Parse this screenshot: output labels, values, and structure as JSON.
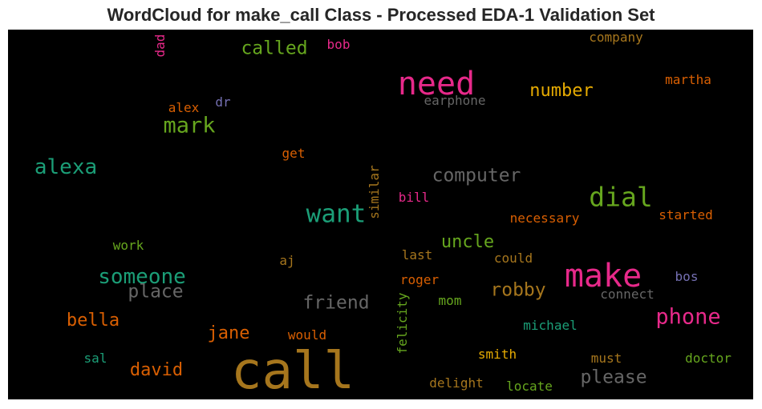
{
  "chart_data": {
    "type": "wordcloud",
    "title": "WordCloud for make_call Class - Processed EDA-1 Validation Set",
    "background": "#000000",
    "colormap": "Dark2",
    "words": [
      {
        "text": "call",
        "color": "#a6761d"
      },
      {
        "text": "make",
        "color": "#e7298a"
      },
      {
        "text": "need",
        "color": "#e7298a"
      },
      {
        "text": "want",
        "color": "#1b9e77"
      },
      {
        "text": "dial",
        "color": "#66a61e"
      },
      {
        "text": "someone",
        "color": "#1b9e77"
      },
      {
        "text": "mark",
        "color": "#66a61e"
      },
      {
        "text": "alexa",
        "color": "#1b9e77"
      },
      {
        "text": "computer",
        "color": "#666666"
      },
      {
        "text": "phone",
        "color": "#e7298a"
      },
      {
        "text": "called",
        "color": "#66a61e"
      },
      {
        "text": "friend",
        "color": "#666666"
      },
      {
        "text": "place",
        "color": "#666666"
      },
      {
        "text": "please",
        "color": "#666666"
      },
      {
        "text": "robby",
        "color": "#a6761d"
      },
      {
        "text": "number",
        "color": "#e6ab02"
      },
      {
        "text": "uncle",
        "color": "#66a61e"
      },
      {
        "text": "bella",
        "color": "#d95f02"
      },
      {
        "text": "jane",
        "color": "#d95f02"
      },
      {
        "text": "david",
        "color": "#d95f02"
      },
      {
        "text": "earphone",
        "color": "#666666"
      },
      {
        "text": "necessary",
        "color": "#d95f02"
      },
      {
        "text": "started",
        "color": "#d95f02"
      },
      {
        "text": "martha",
        "color": "#d95f02"
      },
      {
        "text": "company",
        "color": "#a6761d"
      },
      {
        "text": "bob",
        "color": "#e7298a"
      },
      {
        "text": "dad",
        "color": "#e7298a"
      },
      {
        "text": "alex",
        "color": "#d95f02"
      },
      {
        "text": "dr",
        "color": "#7570b3"
      },
      {
        "text": "get",
        "color": "#d95f02"
      },
      {
        "text": "similar",
        "color": "#a6761d"
      },
      {
        "text": "bill",
        "color": "#e7298a"
      },
      {
        "text": "work",
        "color": "#66a61e"
      },
      {
        "text": "aj",
        "color": "#a6761d"
      },
      {
        "text": "last",
        "color": "#a6761d"
      },
      {
        "text": "could",
        "color": "#a6761d"
      },
      {
        "text": "bos",
        "color": "#7570b3"
      },
      {
        "text": "connect",
        "color": "#666666"
      },
      {
        "text": "roger",
        "color": "#d95f02"
      },
      {
        "text": "mom",
        "color": "#66a61e"
      },
      {
        "text": "felicity",
        "color": "#66a61e"
      },
      {
        "text": "michael",
        "color": "#1b9e77"
      },
      {
        "text": "would",
        "color": "#d95f02"
      },
      {
        "text": "sal",
        "color": "#1b9e77"
      },
      {
        "text": "smith",
        "color": "#e6ab02"
      },
      {
        "text": "must",
        "color": "#a6761d"
      },
      {
        "text": "doctor",
        "color": "#66a61e"
      },
      {
        "text": "delight",
        "color": "#a6761d"
      },
      {
        "text": "locate",
        "color": "#66a61e"
      }
    ]
  }
}
